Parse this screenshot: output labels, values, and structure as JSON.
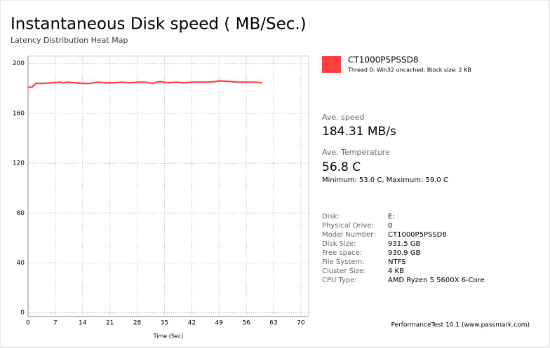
{
  "chart_data": {
    "type": "line",
    "title": "Instantaneous Disk speed ( MB/Sec.)",
    "subtitle": "Latency Distribution Heat Map",
    "xlabel": "Time (Sec)",
    "x": [
      0,
      1,
      2,
      4,
      6,
      8,
      9,
      10,
      12,
      14,
      16,
      18,
      20,
      22,
      24,
      26,
      28,
      30,
      32,
      33,
      34,
      36,
      38,
      40,
      42,
      44,
      46,
      48,
      49,
      50,
      52,
      54,
      56,
      58,
      60
    ],
    "series": [
      {
        "name": "CT1000P5PSSD8",
        "color": "#ff4040",
        "values": [
          181,
          181,
          184,
          184,
          184.5,
          185,
          184.5,
          185,
          184.5,
          184,
          184,
          185,
          184.5,
          184.5,
          185,
          184.5,
          185,
          185,
          184,
          185,
          185.5,
          184.5,
          185,
          184.5,
          185,
          185,
          185,
          185.5,
          186,
          186,
          185.5,
          185,
          185,
          185,
          184.5
        ]
      }
    ],
    "xlim": [
      0,
      72
    ],
    "ylim": [
      -3,
      206
    ],
    "xticks": [
      0,
      7,
      14,
      21,
      28,
      35,
      42,
      49,
      56,
      63,
      70
    ],
    "yticks": [
      0,
      40,
      80,
      120,
      160,
      200
    ],
    "grid": true
  },
  "legend_note": "Thread 0: Win32 uncached; Block size: 2 KB",
  "stats": [
    {
      "label": "Ave. speed",
      "value": "184.31 MB/s"
    },
    {
      "label": "Ave. Temperature",
      "value": "56.8 C"
    }
  ],
  "temperature_range": "Minimum: 53.0 C, Maximum: 59.0 C",
  "info": [
    [
      "Disk:",
      "E:"
    ],
    [
      "Physical Drive:",
      "0"
    ],
    [
      "Model Number:",
      "CT1000P5PSSD8"
    ],
    [
      "Disk Size:",
      "931.5 GB"
    ],
    [
      "Free space:",
      "930.9 GB"
    ],
    [
      "File System:",
      "NTFS"
    ],
    [
      "Cluster Size:",
      "4 KB"
    ],
    [
      "CPU Type:",
      "AMD Ryzen 5 5600X 6-Core"
    ]
  ],
  "footer": "PerformanceTest 10.1 (www.passmark.com)"
}
